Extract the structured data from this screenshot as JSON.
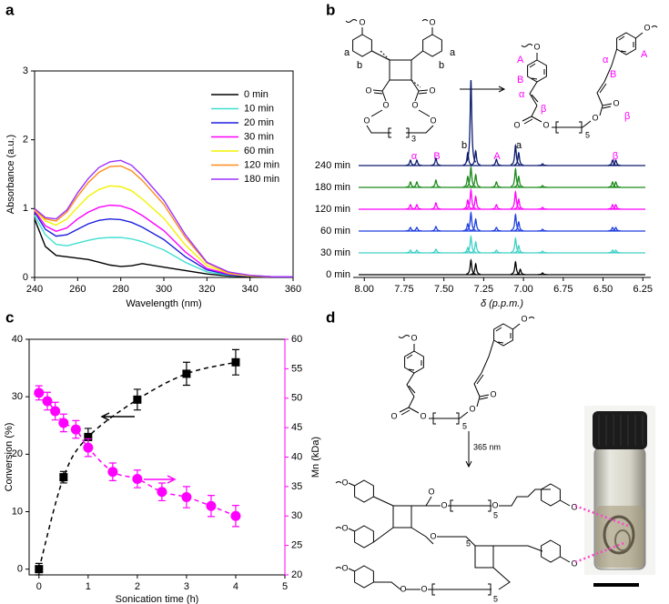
{
  "panels": [
    "a",
    "b",
    "c",
    "d"
  ],
  "chart_data": [
    {
      "type": "line",
      "xlabel": "Wavelength (nm)",
      "ylabel": "Absorbance (a.u.)",
      "x": [
        240,
        245,
        250,
        255,
        260,
        265,
        270,
        275,
        280,
        285,
        290,
        300,
        310,
        320,
        330,
        340,
        350,
        360
      ],
      "xlim": [
        240,
        360
      ],
      "xticks": [
        240,
        260,
        280,
        300,
        320,
        340,
        360
      ],
      "ylim": [
        0,
        3
      ],
      "yticks": [
        0,
        1,
        2,
        3
      ],
      "legend": "upper right",
      "series": [
        {
          "name": "0 min",
          "color": "#000000",
          "values": [
            0.85,
            0.45,
            0.32,
            0.3,
            0.28,
            0.26,
            0.22,
            0.18,
            0.16,
            0.17,
            0.2,
            0.15,
            0.1,
            0.05,
            0.02,
            0.01,
            0.01,
            0.01
          ]
        },
        {
          "name": "10 min",
          "color": "#40e0d0",
          "values": [
            0.9,
            0.62,
            0.48,
            0.46,
            0.5,
            0.54,
            0.57,
            0.58,
            0.58,
            0.56,
            0.52,
            0.4,
            0.22,
            0.08,
            0.03,
            0.02,
            0.01,
            0.01
          ]
        },
        {
          "name": "20 min",
          "color": "#1f1fdd",
          "values": [
            0.95,
            0.7,
            0.6,
            0.62,
            0.7,
            0.78,
            0.83,
            0.85,
            0.84,
            0.8,
            0.73,
            0.55,
            0.3,
            0.11,
            0.04,
            0.02,
            0.01,
            0.01
          ]
        },
        {
          "name": "30 min",
          "color": "#ff00ff",
          "values": [
            0.97,
            0.75,
            0.67,
            0.72,
            0.85,
            0.95,
            1.02,
            1.05,
            1.04,
            0.99,
            0.9,
            0.68,
            0.37,
            0.13,
            0.05,
            0.02,
            0.01,
            0.01
          ]
        },
        {
          "name": "60 min",
          "color": "#f2f200",
          "values": [
            0.98,
            0.82,
            0.76,
            0.85,
            1.02,
            1.18,
            1.28,
            1.33,
            1.32,
            1.26,
            1.14,
            0.86,
            0.47,
            0.17,
            0.06,
            0.02,
            0.01,
            0.01
          ]
        },
        {
          "name": "120 min",
          "color": "#ff8c1a",
          "values": [
            0.99,
            0.85,
            0.82,
            0.95,
            1.18,
            1.38,
            1.53,
            1.61,
            1.62,
            1.55,
            1.41,
            1.06,
            0.58,
            0.21,
            0.07,
            0.03,
            0.01,
            0.01
          ]
        },
        {
          "name": "180 min",
          "color": "#9b30ff",
          "values": [
            1.0,
            0.87,
            0.85,
            0.98,
            1.23,
            1.44,
            1.6,
            1.68,
            1.7,
            1.63,
            1.48,
            1.12,
            0.62,
            0.22,
            0.08,
            0.03,
            0.01,
            0.01
          ]
        }
      ]
    },
    {
      "type": "spectra",
      "xlabel": "δ (p.p.m.)",
      "xlim": [
        8.07,
        6.2
      ],
      "xticks": [
        {
          "value": 8,
          "label": "8.00"
        },
        7.75,
        {
          "value": 7.5,
          "label": "7.50"
        },
        7.25,
        {
          "value": 7,
          "label": "7.00"
        },
        6.75,
        {
          "value": 6.5,
          "label": "6.50"
        },
        6.25
      ],
      "peak_labels": [
        "α",
        "B",
        "b",
        "A",
        "a",
        "β"
      ],
      "series": [
        {
          "name": "0 min",
          "color": "#000000",
          "peak_ppm": [
            7.33,
            7.3,
            7.05,
            7.02,
            6.88
          ],
          "peak_heights": [
            16,
            12,
            14,
            6,
            2
          ]
        },
        {
          "name": "30 min",
          "color": "#40d0c8",
          "peak_ppm": [
            7.71,
            7.67,
            7.55,
            7.35,
            7.33,
            7.3,
            7.17,
            7.05,
            7.03,
            6.88,
            6.44,
            6.42
          ],
          "peak_heights": [
            3,
            3,
            4,
            6,
            18,
            12,
            3,
            16,
            8,
            2,
            3,
            3
          ]
        },
        {
          "name": "60 min",
          "color": "#1f3fe0",
          "peak_ppm": [
            7.71,
            7.67,
            7.55,
            7.35,
            7.33,
            7.3,
            7.17,
            7.05,
            7.03,
            6.88,
            6.44,
            6.42
          ],
          "peak_heights": [
            4,
            4,
            5,
            8,
            20,
            13,
            4,
            18,
            10,
            2,
            4,
            4
          ]
        },
        {
          "name": "120 min",
          "color": "#ff00ff",
          "peak_ppm": [
            7.71,
            7.67,
            7.55,
            7.35,
            7.33,
            7.3,
            7.17,
            7.05,
            7.03,
            6.88,
            6.44,
            6.42
          ],
          "peak_heights": [
            5,
            5,
            7,
            10,
            21,
            14,
            5,
            19,
            11,
            2,
            5,
            5
          ]
        },
        {
          "name": "180 min",
          "color": "#1a8a1a",
          "peak_ppm": [
            7.71,
            7.67,
            7.55,
            7.35,
            7.33,
            7.3,
            7.17,
            7.05,
            7.03,
            6.88,
            6.44,
            6.42
          ],
          "peak_heights": [
            6,
            6,
            8,
            12,
            22,
            14,
            6,
            20,
            12,
            2,
            6,
            6
          ]
        },
        {
          "name": "240 min",
          "color": "#0a1a6e",
          "peak_ppm": [
            7.71,
            7.67,
            7.55,
            7.35,
            7.33,
            7.3,
            7.17,
            7.05,
            7.03,
            6.88,
            6.44,
            6.42
          ],
          "peak_heights": [
            6,
            6,
            8,
            14,
            94,
            16,
            7,
            22,
            14,
            2,
            6,
            6
          ]
        }
      ]
    },
    {
      "type": "scatter",
      "xlabel": "Sonication time (h)",
      "ylabel": "Conversion (%)",
      "y2label": "Mn (kDa)",
      "xlim": [
        -0.2,
        5
      ],
      "xticks": [
        0,
        1,
        2,
        3,
        4,
        5
      ],
      "ylim": [
        -1,
        40
      ],
      "yticks": [
        0,
        10,
        20,
        30,
        40
      ],
      "y2lim": [
        20,
        60
      ],
      "y2ticks": [
        20,
        25,
        30,
        35,
        40,
        45,
        50,
        55,
        60
      ],
      "series": [
        {
          "color": "#000000",
          "marker": "square",
          "x": [
            0,
            0.5,
            1,
            2,
            3,
            4
          ],
          "values": [
            0,
            16,
            23,
            29.5,
            34,
            36
          ],
          "errors": [
            1,
            1,
            1.5,
            1.8,
            2,
            2.2
          ]
        },
        {
          "color": "#ff00ff",
          "marker": "circle",
          "axis": "y2",
          "x": [
            0,
            0.17,
            0.33,
            0.5,
            0.75,
            1,
            1.5,
            2,
            2.5,
            3,
            3.5,
            4
          ],
          "values": [
            50.9,
            49.5,
            47.8,
            45.8,
            44.7,
            41.6,
            37.5,
            36.3,
            34.1,
            33.2,
            31.7,
            30.0
          ],
          "errors": [
            1.2,
            1.5,
            1.5,
            1.5,
            1.5,
            1.5,
            1.5,
            1.5,
            1.5,
            1.8,
            1.8,
            1.8
          ]
        }
      ]
    }
  ],
  "structures": {
    "b_reactant": [
      "O",
      "O",
      "a",
      "b",
      "a",
      "b",
      "O",
      "O",
      "O",
      "O",
      "O",
      "O",
      "3"
    ],
    "b_product": [
      "O",
      "O",
      "O",
      "O",
      "O",
      "O",
      "5",
      "A",
      "B",
      "α",
      "β",
      "α",
      "B",
      "A",
      "β"
    ],
    "d_monomer": [
      "O",
      "O",
      "O",
      "O",
      "O",
      "O",
      "5"
    ],
    "d_arrow": "365 nm",
    "d_polymer": [
      "O",
      "O",
      "O",
      "O",
      "O",
      "O",
      "O",
      "O",
      "O",
      "O",
      "O",
      "5",
      "5",
      "5"
    ]
  }
}
